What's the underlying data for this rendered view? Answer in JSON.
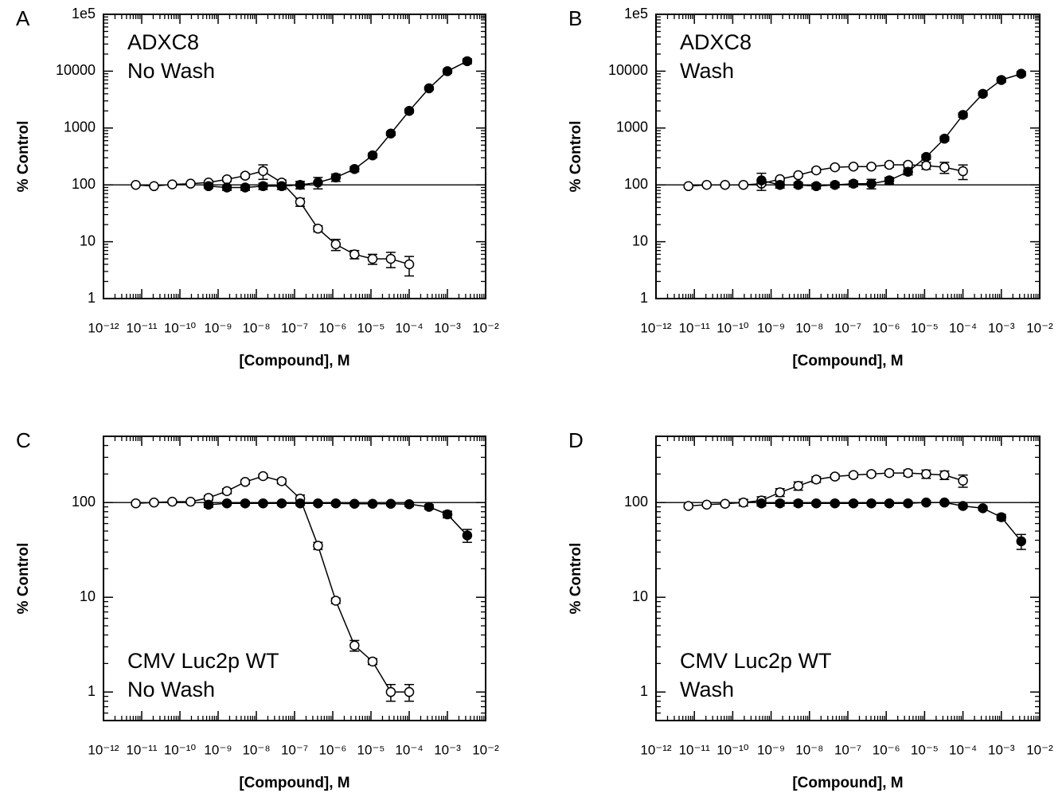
{
  "chart_data": [
    {
      "type": "line",
      "panel_label": "A",
      "annotation": [
        "ADXC8",
        "No Wash"
      ],
      "xlabel": "[Compound], M",
      "ylabel": "% Control",
      "xlog": true,
      "ylog": true,
      "xlim": [
        1e-12,
        0.01
      ],
      "ylim": [
        1,
        100000
      ],
      "xticks": [
        {
          "value": 1e-12,
          "label": "10⁻¹²"
        },
        {
          "value": 1e-11,
          "label": "10⁻¹¹"
        },
        {
          "value": 1e-10,
          "label": "10⁻¹⁰"
        },
        {
          "value": 1e-09,
          "label": "10⁻⁹"
        },
        {
          "value": 1e-08,
          "label": "10⁻⁸"
        },
        {
          "value": 1e-07,
          "label": "10⁻⁷"
        },
        {
          "value": 1e-06,
          "label": "10⁻⁶"
        },
        {
          "value": 1e-05,
          "label": "10⁻⁵"
        },
        {
          "value": 0.0001,
          "label": "10⁻⁴"
        },
        {
          "value": 0.001,
          "label": "10⁻³"
        },
        {
          "value": 0.01,
          "label": "10⁻²"
        }
      ],
      "yticks": [
        1,
        10,
        100,
        1000,
        10000,
        {
          "value": 100000,
          "label": "1e5"
        }
      ],
      "reference_line": 100,
      "series": [
        {
          "color": "#000000",
          "fill": "#ffffff",
          "x": [
            7e-12,
            2.1e-11,
            6.3e-11,
            1.9e-10,
            5.6e-10,
            1.7e-09,
            5.1e-09,
            1.5e-08,
            4.6e-08,
            1.4e-07,
            4.1e-07,
            1.2e-06,
            3.7e-06,
            1.1e-05,
            3.3e-05,
            0.0001
          ],
          "values": [
            100,
            95,
            102,
            105,
            110,
            125,
            145,
            175,
            110,
            50,
            17,
            9,
            6,
            5,
            5,
            4
          ],
          "errors": [
            4,
            4,
            4,
            5,
            8,
            10,
            12,
            50,
            12,
            8,
            2,
            2,
            1,
            1,
            1.5,
            1.5
          ]
        },
        {
          "color": "#000000",
          "fill": "#000000",
          "x": [
            5.6e-10,
            1.7e-09,
            5.1e-09,
            1.5e-08,
            4.6e-08,
            1.4e-07,
            4.1e-07,
            1.2e-06,
            3.7e-06,
            1.1e-05,
            3.3e-05,
            0.0001,
            0.00033,
            0.001,
            0.0033
          ],
          "values": [
            95,
            90,
            90,
            95,
            95,
            100,
            110,
            135,
            190,
            330,
            800,
            2000,
            5000,
            10000,
            15000
          ],
          "errors": [
            8,
            10,
            10,
            12,
            12,
            15,
            25,
            20,
            20,
            30,
            60,
            150,
            300,
            800,
            1500
          ]
        }
      ]
    },
    {
      "type": "line",
      "panel_label": "B",
      "annotation": [
        "ADXC8",
        "Wash"
      ],
      "xlabel": "[Compound], M",
      "ylabel": "% Control",
      "xlog": true,
      "ylog": true,
      "xlim": [
        1e-12,
        0.01
      ],
      "ylim": [
        1,
        100000
      ],
      "xticks": [
        {
          "value": 1e-12,
          "label": "10⁻¹²"
        },
        {
          "value": 1e-11,
          "label": "10⁻¹¹"
        },
        {
          "value": 1e-10,
          "label": "10⁻¹⁰"
        },
        {
          "value": 1e-09,
          "label": "10⁻⁹"
        },
        {
          "value": 1e-08,
          "label": "10⁻⁸"
        },
        {
          "value": 1e-07,
          "label": "10⁻⁷"
        },
        {
          "value": 1e-06,
          "label": "10⁻⁶"
        },
        {
          "value": 1e-05,
          "label": "10⁻⁵"
        },
        {
          "value": 0.0001,
          "label": "10⁻⁴"
        },
        {
          "value": 0.001,
          "label": "10⁻³"
        },
        {
          "value": 0.01,
          "label": "10⁻²"
        }
      ],
      "yticks": [
        1,
        10,
        100,
        1000,
        10000,
        {
          "value": 100000,
          "label": "1e5"
        }
      ],
      "reference_line": 100,
      "series": [
        {
          "color": "#000000",
          "fill": "#ffffff",
          "x": [
            7e-12,
            2.1e-11,
            6.3e-11,
            1.9e-10,
            5.6e-10,
            1.7e-09,
            5.1e-09,
            1.5e-08,
            4.6e-08,
            1.4e-07,
            4.1e-07,
            1.2e-06,
            3.7e-06,
            1.1e-05,
            3.3e-05,
            0.0001
          ],
          "values": [
            95,
            100,
            100,
            100,
            105,
            126,
            148,
            180,
            204,
            210,
            210,
            225,
            225,
            218,
            204,
            174
          ],
          "errors": [
            5,
            5,
            5,
            5,
            8,
            8,
            10,
            15,
            15,
            15,
            15,
            20,
            20,
            30,
            45,
            50
          ]
        },
        {
          "color": "#000000",
          "fill": "#000000",
          "x": [
            5.6e-10,
            1.7e-09,
            5.1e-09,
            1.5e-08,
            4.6e-08,
            1.4e-07,
            4.1e-07,
            1.2e-06,
            3.7e-06,
            1.1e-05,
            3.3e-05,
            0.0001,
            0.00033,
            0.001,
            0.0033
          ],
          "values": [
            120,
            100,
            100,
            95,
            100,
            105,
            105,
            120,
            170,
            310,
            650,
            1700,
            4000,
            7000,
            9000
          ],
          "errors": [
            40,
            12,
            10,
            10,
            10,
            12,
            20,
            15,
            20,
            30,
            60,
            150,
            300,
            600,
            800
          ]
        }
      ]
    },
    {
      "type": "line",
      "panel_label": "C",
      "annotation": [
        "CMV Luc2p WT",
        "No Wash"
      ],
      "xlabel": "[Compound], M",
      "ylabel": "% Control",
      "xlog": true,
      "ylog": true,
      "xlim": [
        1e-12,
        0.01
      ],
      "ylim": [
        0.5,
        500
      ],
      "xticks": [
        {
          "value": 1e-12,
          "label": "10⁻¹²"
        },
        {
          "value": 1e-11,
          "label": "10⁻¹¹"
        },
        {
          "value": 1e-10,
          "label": "10⁻¹⁰"
        },
        {
          "value": 1e-09,
          "label": "10⁻⁹"
        },
        {
          "value": 1e-08,
          "label": "10⁻⁸"
        },
        {
          "value": 1e-07,
          "label": "10⁻⁷"
        },
        {
          "value": 1e-06,
          "label": "10⁻⁶"
        },
        {
          "value": 1e-05,
          "label": "10⁻⁵"
        },
        {
          "value": 0.0001,
          "label": "10⁻⁴"
        },
        {
          "value": 0.001,
          "label": "10⁻³"
        },
        {
          "value": 0.01,
          "label": "10⁻²"
        }
      ],
      "yticks": [
        1,
        10,
        100
      ],
      "reference_line": 100,
      "series": [
        {
          "color": "#000000",
          "fill": "#ffffff",
          "x": [
            7e-12,
            2.1e-11,
            6.3e-11,
            1.9e-10,
            5.6e-10,
            1.7e-09,
            5.1e-09,
            1.5e-08,
            4.6e-08,
            1.4e-07,
            4.1e-07,
            1.2e-06,
            3.7e-06,
            1.1e-05,
            3.3e-05,
            0.0001
          ],
          "values": [
            98,
            100,
            102,
            102,
            112,
            132,
            165,
            190,
            168,
            110,
            35,
            9.2,
            3.1,
            2.1,
            1,
            1
          ],
          "errors": [
            4,
            4,
            4,
            4,
            6,
            8,
            8,
            10,
            10,
            10,
            3,
            0.6,
            0.4,
            0.15,
            0.2,
            0.2
          ]
        },
        {
          "color": "#000000",
          "fill": "#000000",
          "x": [
            5.6e-10,
            1.7e-09,
            5.1e-09,
            1.5e-08,
            4.6e-08,
            1.4e-07,
            4.1e-07,
            1.2e-06,
            3.7e-06,
            1.1e-05,
            3.3e-05,
            0.0001,
            0.00033,
            0.001,
            0.0033
          ],
          "values": [
            95,
            98,
            98,
            98,
            98,
            98,
            98,
            98,
            97,
            97,
            97,
            96,
            90,
            75,
            45
          ],
          "errors": [
            6,
            4,
            4,
            4,
            4,
            4,
            4,
            4,
            4,
            4,
            4,
            5,
            5,
            6,
            7
          ]
        }
      ]
    },
    {
      "type": "line",
      "panel_label": "D",
      "annotation": [
        "CMV Luc2p WT",
        "Wash"
      ],
      "xlabel": "[Compound], M",
      "ylabel": "% Control",
      "xlog": true,
      "ylog": true,
      "xlim": [
        1e-12,
        0.01
      ],
      "ylim": [
        0.5,
        500
      ],
      "xticks": [
        {
          "value": 1e-12,
          "label": "10⁻¹²"
        },
        {
          "value": 1e-11,
          "label": "10⁻¹¹"
        },
        {
          "value": 1e-10,
          "label": "10⁻¹⁰"
        },
        {
          "value": 1e-09,
          "label": "10⁻⁹"
        },
        {
          "value": 1e-08,
          "label": "10⁻⁸"
        },
        {
          "value": 1e-07,
          "label": "10⁻⁷"
        },
        {
          "value": 1e-06,
          "label": "10⁻⁶"
        },
        {
          "value": 1e-05,
          "label": "10⁻⁵"
        },
        {
          "value": 0.0001,
          "label": "10⁻⁴"
        },
        {
          "value": 0.001,
          "label": "10⁻³"
        },
        {
          "value": 0.01,
          "label": "10⁻²"
        }
      ],
      "yticks": [
        1,
        10,
        100
      ],
      "reference_line": 100,
      "series": [
        {
          "color": "#000000",
          "fill": "#ffffff",
          "x": [
            7e-12,
            2.1e-11,
            6.3e-11,
            1.9e-10,
            5.6e-10,
            1.7e-09,
            5.1e-09,
            1.5e-08,
            4.6e-08,
            1.4e-07,
            4.1e-07,
            1.2e-06,
            3.7e-06,
            1.1e-05,
            3.3e-05,
            0.0001
          ],
          "values": [
            92,
            95,
            97,
            100,
            105,
            128,
            150,
            175,
            188,
            195,
            200,
            205,
            205,
            200,
            195,
            170
          ],
          "errors": [
            4,
            4,
            4,
            8,
            10,
            12,
            15,
            12,
            10,
            10,
            10,
            12,
            15,
            20,
            20,
            25
          ]
        },
        {
          "color": "#000000",
          "fill": "#000000",
          "x": [
            5.6e-10,
            1.7e-09,
            5.1e-09,
            1.5e-08,
            4.6e-08,
            1.4e-07,
            4.1e-07,
            1.2e-06,
            3.7e-06,
            1.1e-05,
            3.3e-05,
            0.0001,
            0.00033,
            0.001,
            0.0033
          ],
          "values": [
            98,
            98,
            98,
            98,
            98,
            98,
            98,
            98,
            98,
            100,
            100,
            92,
            87,
            70,
            39
          ],
          "errors": [
            6,
            6,
            6,
            4,
            4,
            4,
            4,
            4,
            4,
            4,
            4,
            4,
            4,
            5,
            7
          ]
        }
      ]
    }
  ]
}
